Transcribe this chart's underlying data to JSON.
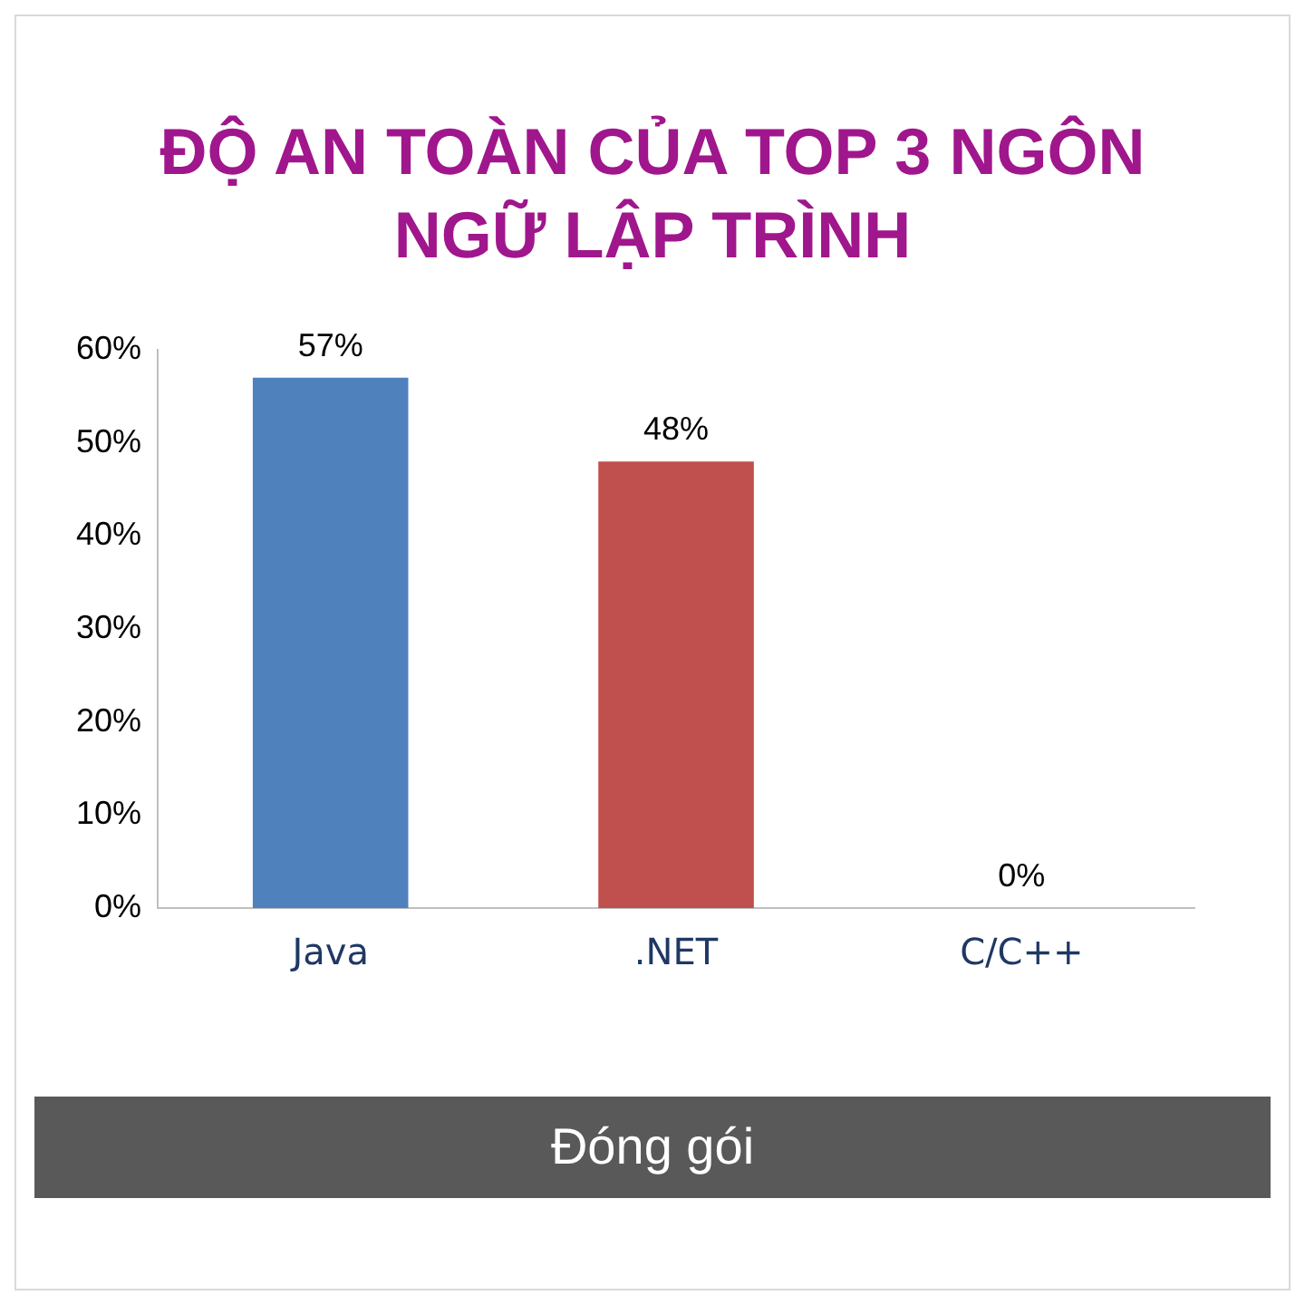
{
  "chart_data": {
    "type": "bar",
    "title": "ĐỘ AN TOÀN CỦA TOP 3 NGÔN NGỮ LẬP TRÌNH",
    "categories": [
      "Java",
      ".NET",
      "C/C++"
    ],
    "values": [
      57,
      48,
      0
    ],
    "colors": [
      "#4f81bd",
      "#c0504d",
      "#9bbb59"
    ],
    "ylim": [
      0,
      60
    ],
    "yticks": [
      {
        "value": 0,
        "label": "0%"
      },
      {
        "value": 10,
        "label": "10%"
      },
      {
        "value": 20,
        "label": "20%"
      },
      {
        "value": 30,
        "label": "30%"
      },
      {
        "value": 40,
        "label": "40%"
      },
      {
        "value": 50,
        "label": "50%"
      },
      {
        "value": 60,
        "label": "60%"
      }
    ],
    "value_labels": [
      "57%",
      "48%",
      "0%"
    ],
    "annotations": [
      "Đóng gói"
    ]
  }
}
